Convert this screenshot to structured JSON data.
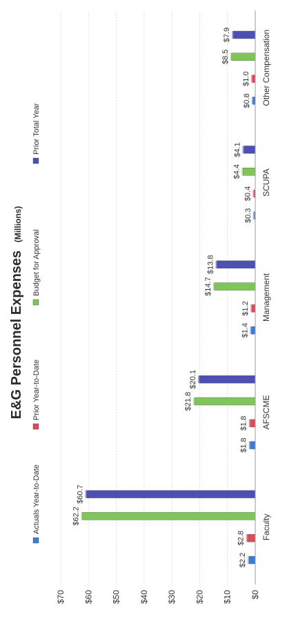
{
  "chart_data": {
    "type": "bar",
    "orientation": "vertical, page rotated 90 degrees counter-clockwise",
    "title": "E&G Personnel Expenses",
    "subtitle": "(Millions)",
    "categories": [
      "Faculty",
      "AFSCME",
      "Management",
      "SCUPA",
      "Other Compensation"
    ],
    "series": [
      {
        "name": "Actuals Year-to-Date",
        "color": "#3a7dd6",
        "values": [
          2.2,
          1.8,
          1.4,
          0.3,
          0.8
        ],
        "labels": [
          "$2.2",
          "$1.8",
          "$1.4",
          "$0.3",
          "$0.8"
        ]
      },
      {
        "name": "Prior Year-to-Date",
        "color": "#e04a58",
        "values": [
          2.8,
          1.8,
          1.2,
          0.4,
          1.0
        ],
        "labels": [
          "$2.8",
          "$1.8",
          "$1.2",
          "$0.4",
          "$1.0"
        ]
      },
      {
        "name": "Budget for Approval",
        "color": "#7fc65a",
        "values": [
          62.2,
          21.8,
          14.7,
          4.4,
          8.5
        ],
        "labels": [
          "$62.2",
          "$21.8",
          "$14.7",
          "$4.4",
          "$8.5"
        ]
      },
      {
        "name": "Prior Total Year",
        "color": "#4c4fb3",
        "values": [
          60.7,
          20.1,
          13.8,
          4.1,
          7.9
        ],
        "labels": [
          "$60.7",
          "$20.1",
          "$13.8",
          "$4.1",
          "$7.9"
        ]
      }
    ],
    "ylim": [
      0,
      70
    ],
    "yticks": [
      0,
      10,
      20,
      30,
      40,
      50,
      60,
      70
    ],
    "ytick_labels": [
      "$0",
      "$10",
      "$20",
      "$30",
      "$40",
      "$50",
      "$60",
      "$70"
    ],
    "grid": true,
    "legend_position": "top"
  }
}
